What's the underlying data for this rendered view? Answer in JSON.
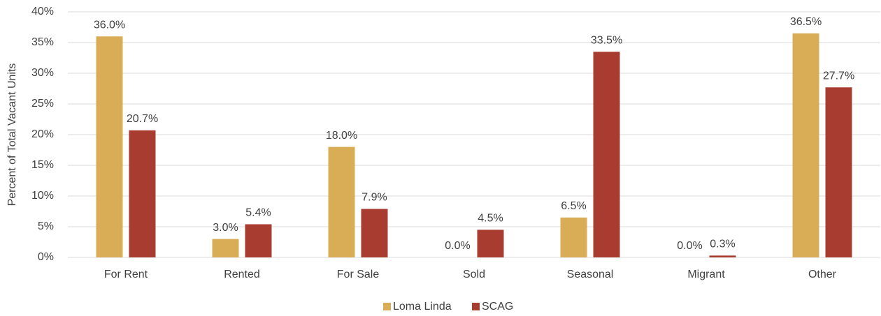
{
  "chart_data": {
    "type": "bar",
    "y_label": "Percent of Total Vacant Units",
    "categories": [
      "For Rent",
      "Rented",
      "For Sale",
      "Sold",
      "Seasonal",
      "Migrant",
      "Other"
    ],
    "series": [
      {
        "name": "Loma Linda",
        "color": "#d9ad55",
        "values": [
          36.0,
          3.0,
          18.0,
          0.0,
          6.5,
          0.0,
          36.5
        ],
        "value_labels": [
          "36.0%",
          "3.0%",
          "18.0%",
          "0.0%",
          "6.5%",
          "0.0%",
          "36.5%"
        ]
      },
      {
        "name": "SCAG",
        "color": "#a83c30",
        "values": [
          20.7,
          5.4,
          7.9,
          4.5,
          33.5,
          0.3,
          27.7
        ],
        "value_labels": [
          "20.7%",
          "5.4%",
          "7.9%",
          "4.5%",
          "33.5%",
          "0.3%",
          "27.7%"
        ]
      }
    ],
    "ylim": [
      0,
      40
    ],
    "yticks": [
      {
        "value": 0,
        "label": "0%"
      },
      {
        "value": 5,
        "label": "5%"
      },
      {
        "value": 10,
        "label": "10%"
      },
      {
        "value": 15,
        "label": "15%"
      },
      {
        "value": 20,
        "label": "20%"
      },
      {
        "value": 25,
        "label": "25%"
      },
      {
        "value": 30,
        "label": "30%"
      },
      {
        "value": 35,
        "label": "35%"
      },
      {
        "value": 40,
        "label": "40%"
      }
    ],
    "grid": true,
    "legend": "bottom"
  }
}
